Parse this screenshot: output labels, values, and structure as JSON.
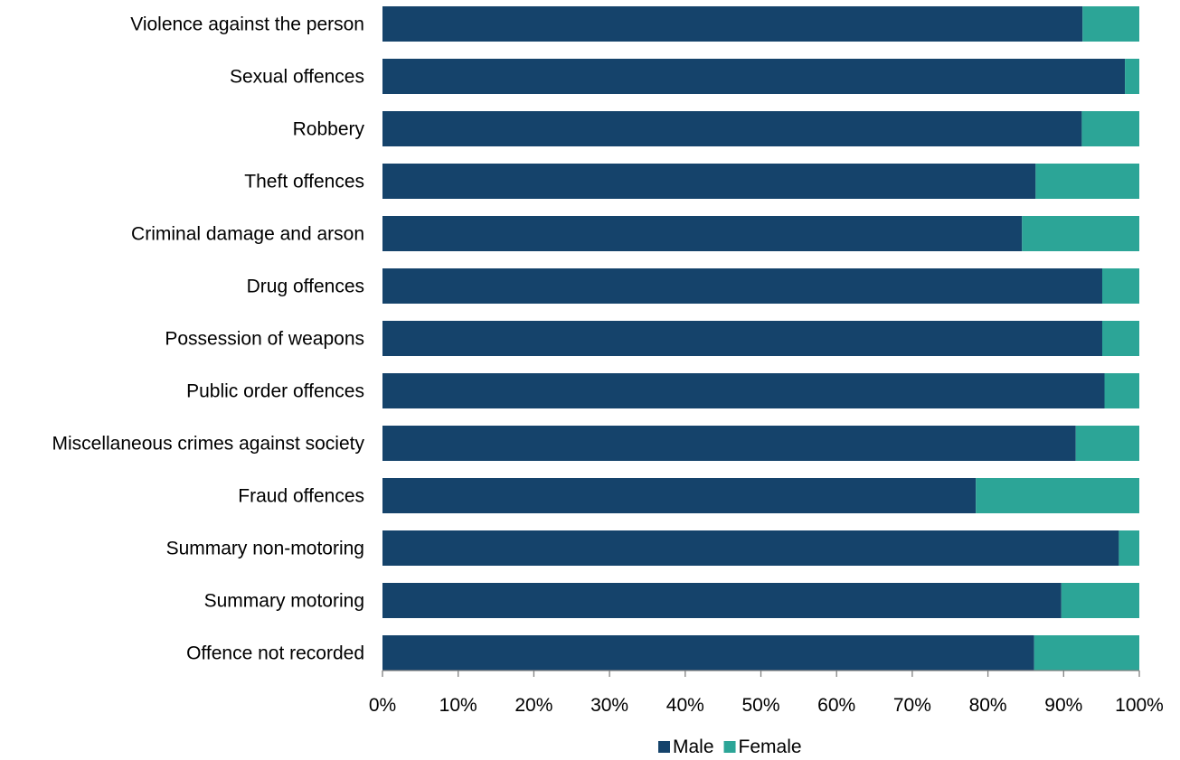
{
  "chart_data": {
    "type": "bar",
    "orientation": "horizontal",
    "stacked": true,
    "categories": [
      "Violence against the person",
      "Sexual offences",
      "Robbery",
      "Theft offences",
      "Criminal damage and arson",
      "Drug offences",
      "Possession of weapons",
      "Public order offences",
      "Miscellaneous crimes against society",
      "Fraud offences",
      "Summary non-motoring",
      "Summary motoring",
      "Offence not recorded"
    ],
    "series": [
      {
        "name": "Male",
        "color": "#15436b",
        "values": [
          92.5,
          98.1,
          92.4,
          86.3,
          84.5,
          95.1,
          95.1,
          95.4,
          91.6,
          78.4,
          97.3,
          89.7,
          86.1
        ]
      },
      {
        "name": "Female",
        "color": "#2ca597",
        "values": [
          7.5,
          1.9,
          7.6,
          13.7,
          15.5,
          4.9,
          4.9,
          4.6,
          8.4,
          21.6,
          2.7,
          10.3,
          13.9
        ]
      }
    ],
    "xlim": [
      0,
      100
    ],
    "x_ticks": [
      "0%",
      "10%",
      "20%",
      "30%",
      "40%",
      "50%",
      "60%",
      "70%",
      "80%",
      "90%",
      "100%"
    ],
    "title": "",
    "xlabel": "",
    "ylabel": "",
    "grid": false,
    "legend_position": "bottom"
  }
}
